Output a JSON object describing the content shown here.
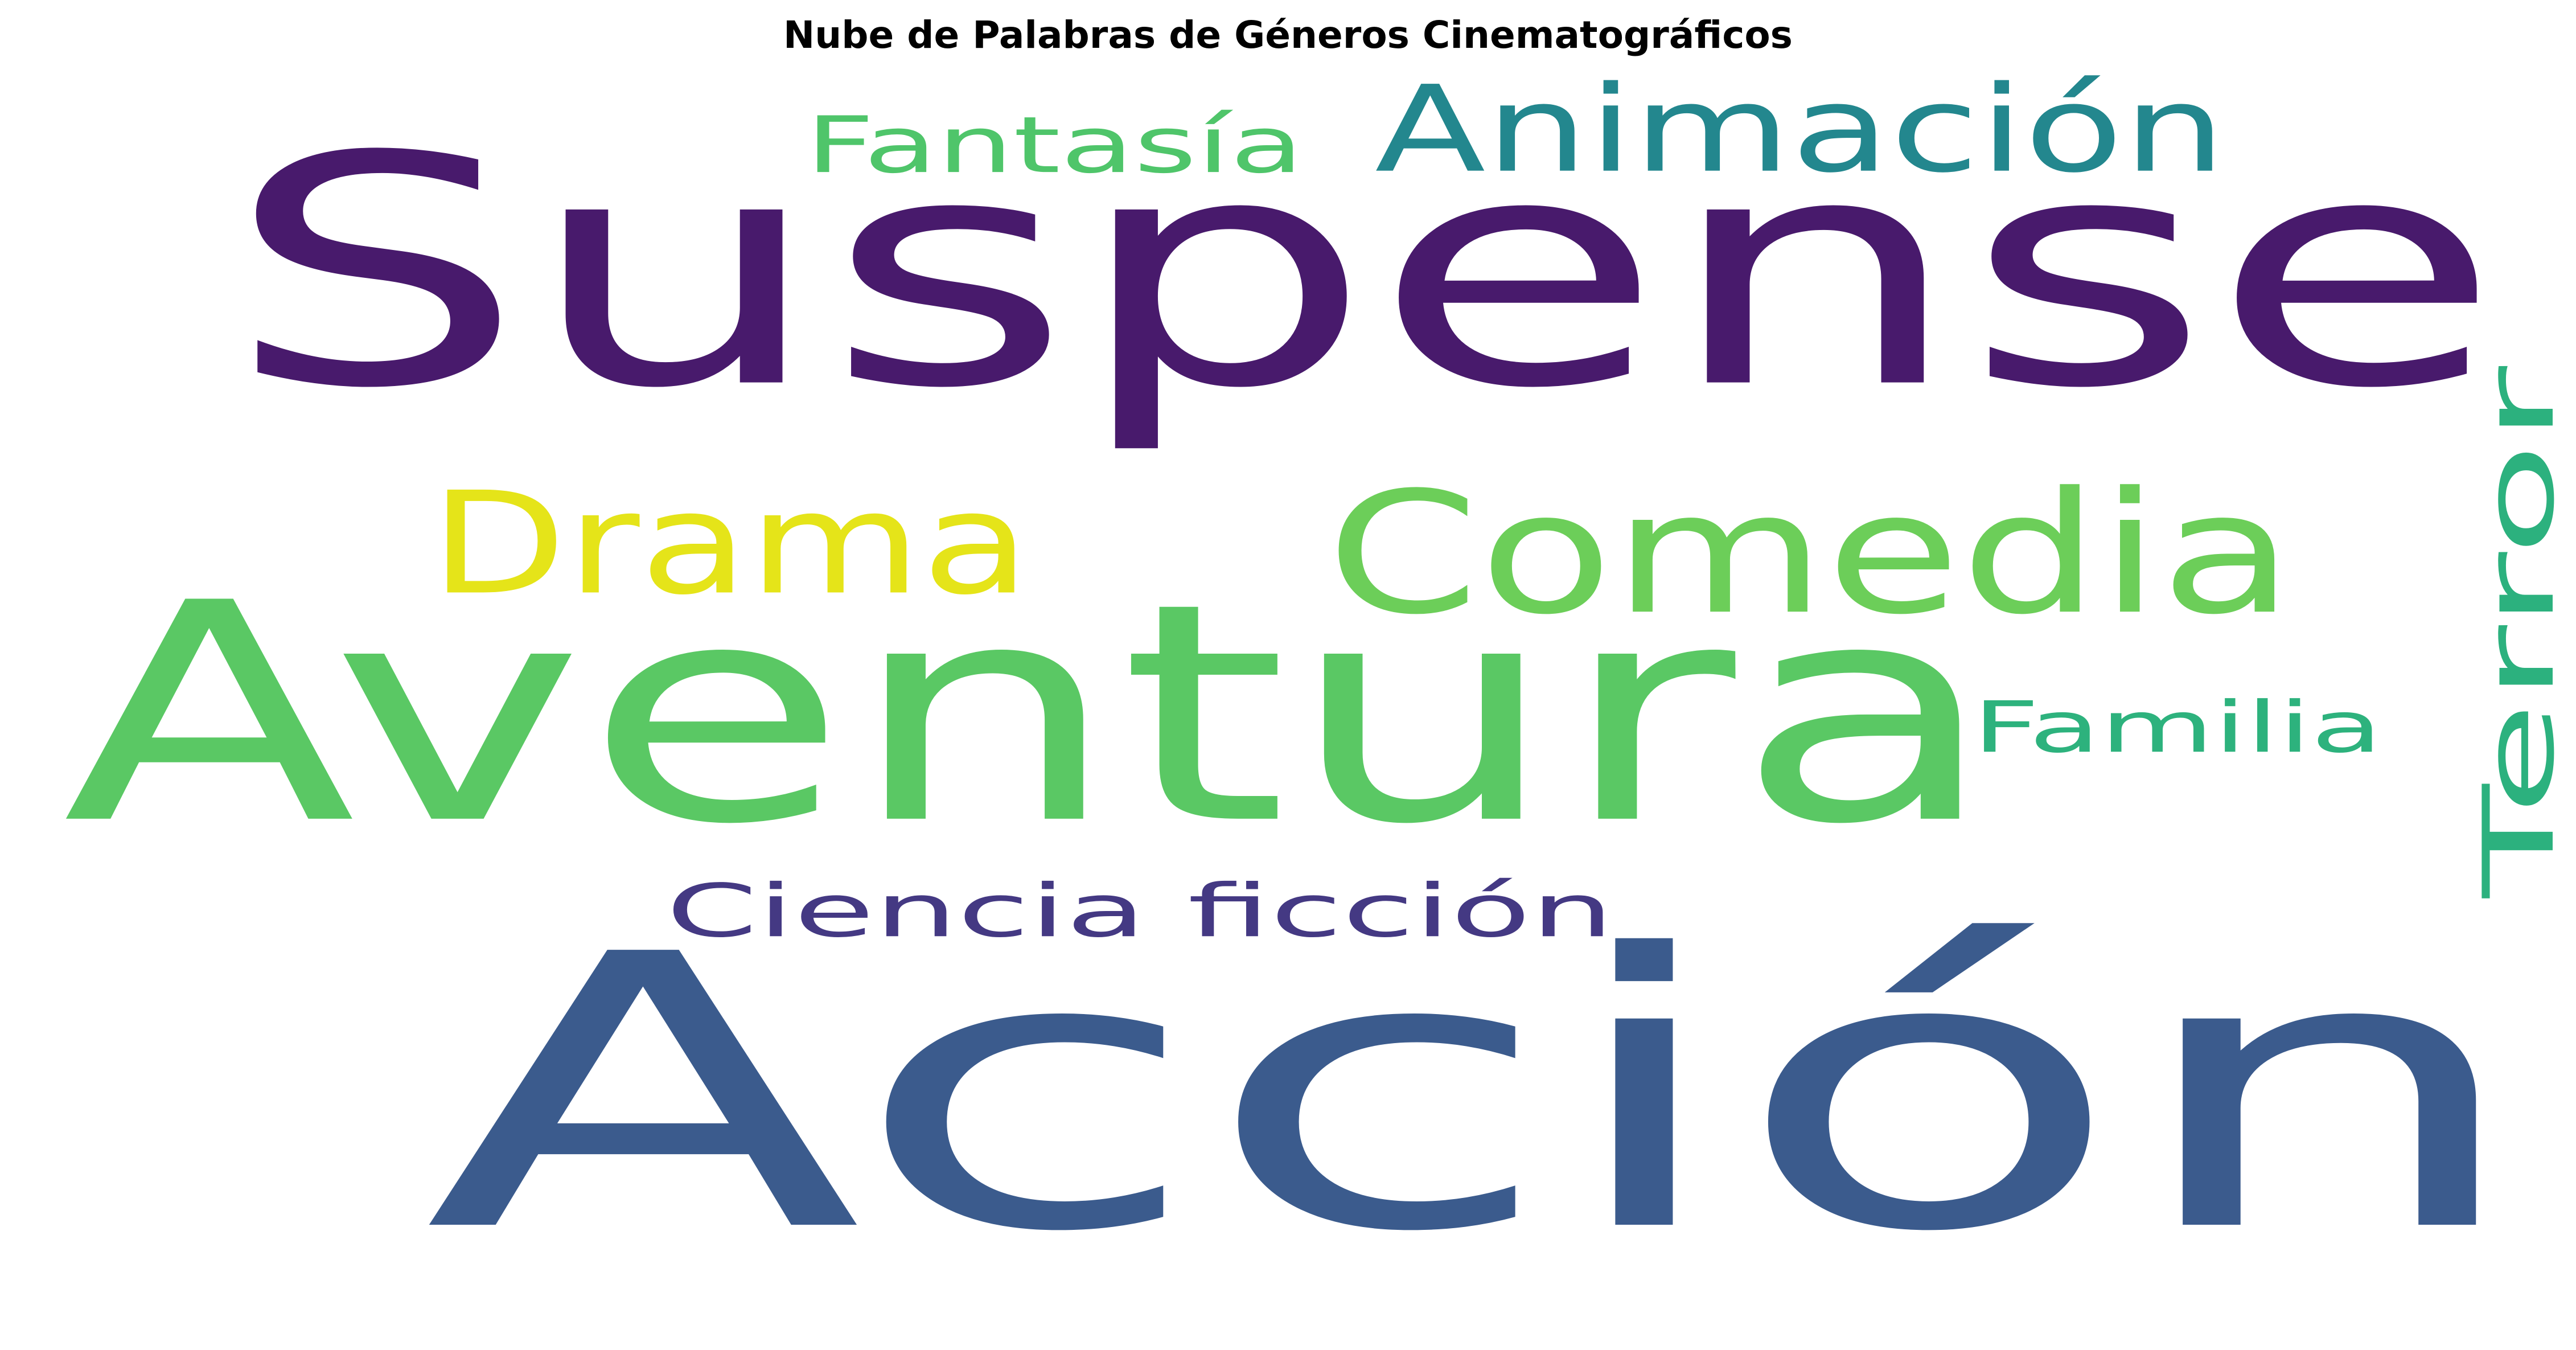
{
  "chart_data": {
    "type": "wordcloud",
    "title": "Nube de Palabras de Géneros Cinematográficos",
    "colormap": "viridis",
    "background": "#ffffff",
    "words": [
      {
        "text": "Acción",
        "color": "#3b5b8d"
      },
      {
        "text": "Suspense",
        "color": "#481a6c"
      },
      {
        "text": "Aventura",
        "color": "#5ac864"
      },
      {
        "text": "Comedia",
        "color": "#6cce59"
      },
      {
        "text": "Drama",
        "color": "#e5e419"
      },
      {
        "text": "Animación",
        "color": "#23878e"
      },
      {
        "text": "Terror",
        "color": "#2cb17e"
      },
      {
        "text": "Fantasía",
        "color": "#4fc56a"
      },
      {
        "text": "Familia",
        "color": "#2db27d"
      },
      {
        "text": "Ciencia ficción",
        "color": "#443983"
      }
    ]
  }
}
